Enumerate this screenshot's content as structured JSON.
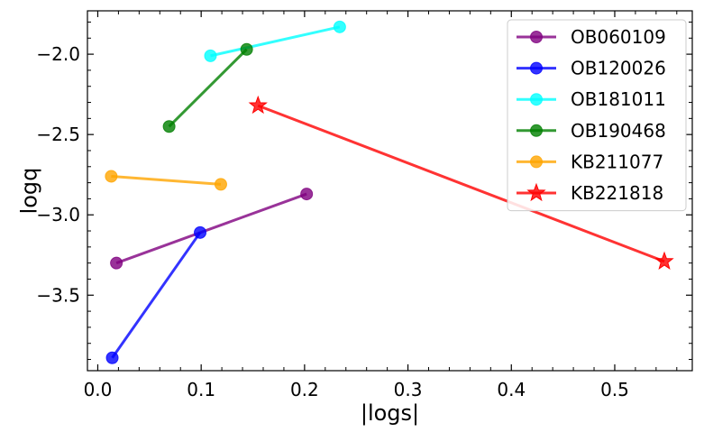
{
  "chart_data": {
    "type": "line",
    "title": "",
    "xlabel": "|logs|",
    "ylabel": "logq",
    "xlim": [
      -0.01,
      0.575
    ],
    "ylim": [
      -3.97,
      -1.73
    ],
    "xticks": [
      0.0,
      0.1,
      0.2,
      0.3,
      0.4,
      0.5
    ],
    "xtick_labels": [
      "0.0",
      "0.1",
      "0.2",
      "0.3",
      "0.4",
      "0.5"
    ],
    "yticks": [
      -2.0,
      -2.5,
      -3.0,
      -3.5
    ],
    "ytick_labels": [
      "−2.0",
      "−2.5",
      "−3.0",
      "−3.5"
    ],
    "grid": false,
    "legend_position": "top-right",
    "series": [
      {
        "name": "OB060109",
        "color": "#800080",
        "marker": "circle",
        "x": [
          0.018,
          0.202
        ],
        "y": [
          -3.3,
          -2.87
        ]
      },
      {
        "name": "OB120026",
        "color": "#0000ff",
        "marker": "circle",
        "x": [
          0.014,
          0.099
        ],
        "y": [
          -3.89,
          -3.11
        ]
      },
      {
        "name": "OB181011",
        "color": "#00ffff",
        "marker": "circle",
        "x": [
          0.109,
          0.234
        ],
        "y": [
          -2.01,
          -1.83
        ]
      },
      {
        "name": "OB190468",
        "color": "#008000",
        "marker": "circle",
        "x": [
          0.069,
          0.144
        ],
        "y": [
          -2.45,
          -1.97
        ]
      },
      {
        "name": "KB211077",
        "color": "#ffa500",
        "marker": "circle",
        "x": [
          0.013,
          0.119
        ],
        "y": [
          -2.76,
          -2.81
        ]
      },
      {
        "name": "KB221818",
        "color": "#ff0000",
        "marker": "star",
        "x": [
          0.155,
          0.548
        ],
        "y": [
          -2.32,
          -3.29
        ]
      }
    ]
  }
}
